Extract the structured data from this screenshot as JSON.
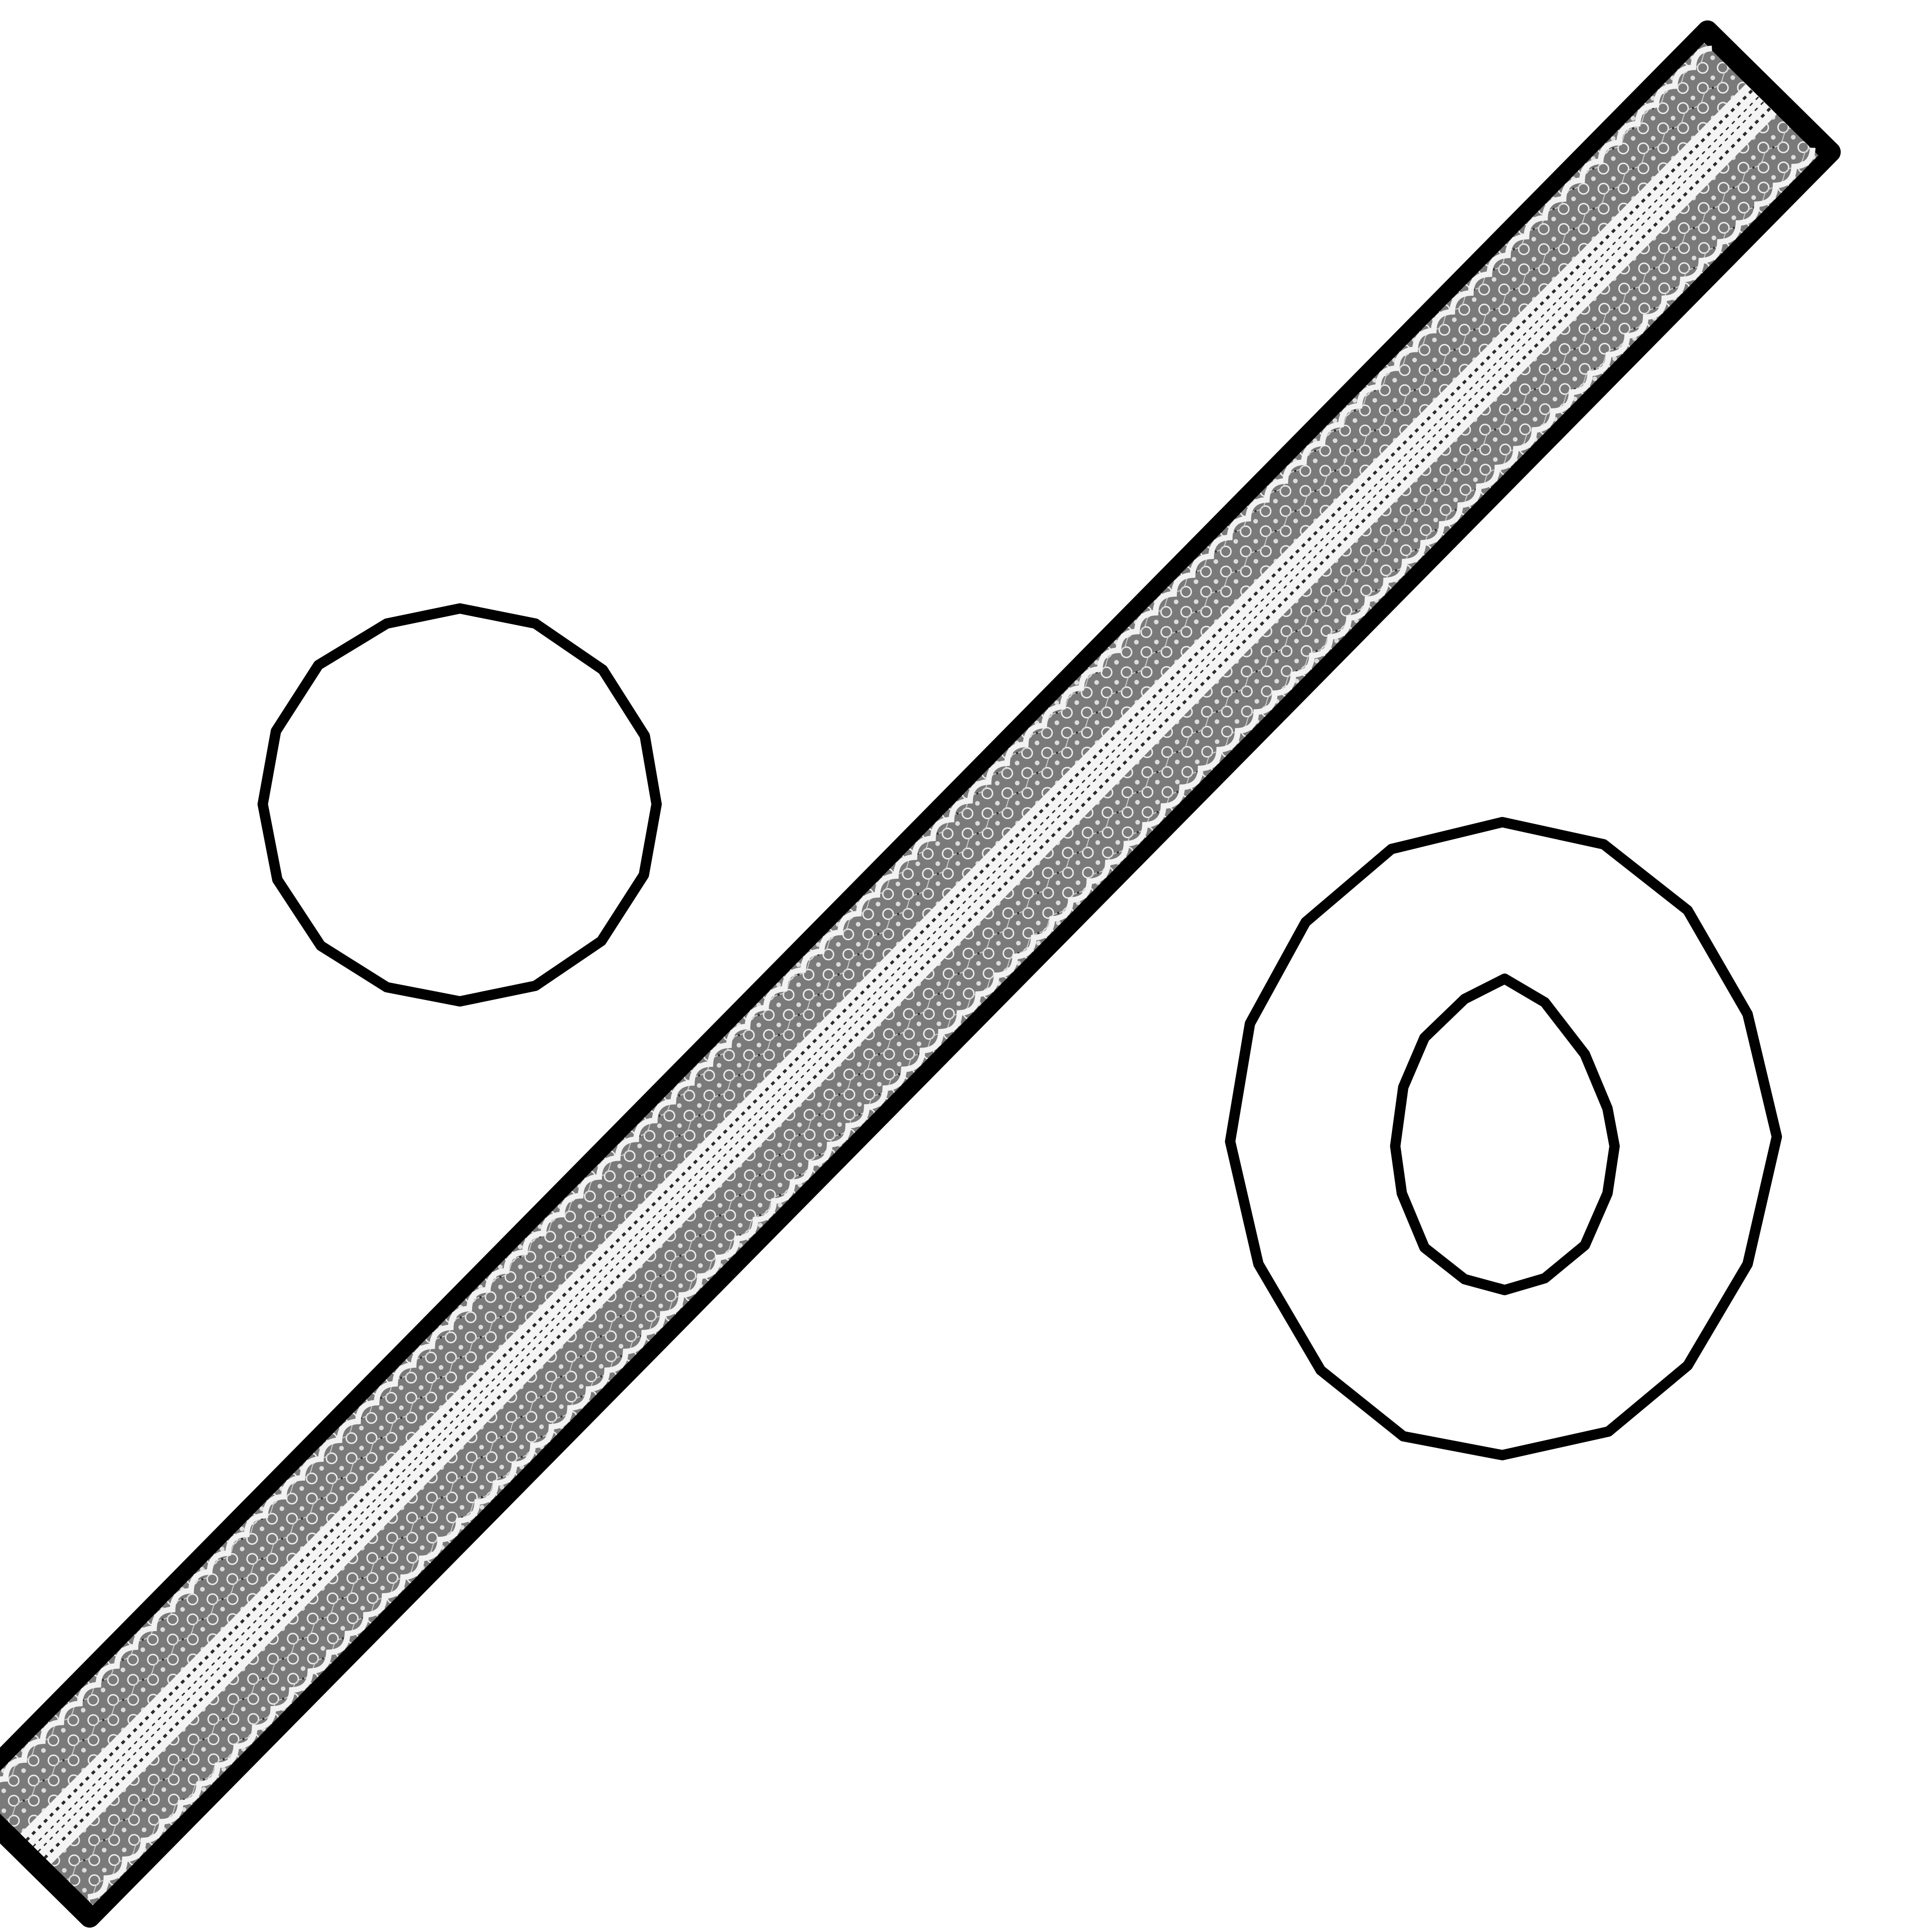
{
  "artwork": {
    "subject": "percent-sign",
    "style": "black outline, lace-textured diagonal bar",
    "colors": {
      "background": "#ffffff",
      "outline": "#000000",
      "shape_fill": "#ffffff",
      "lace_dark": "#555555",
      "lace_mid": "#8a8a8a",
      "lace_light": "#f2f2f2"
    }
  }
}
